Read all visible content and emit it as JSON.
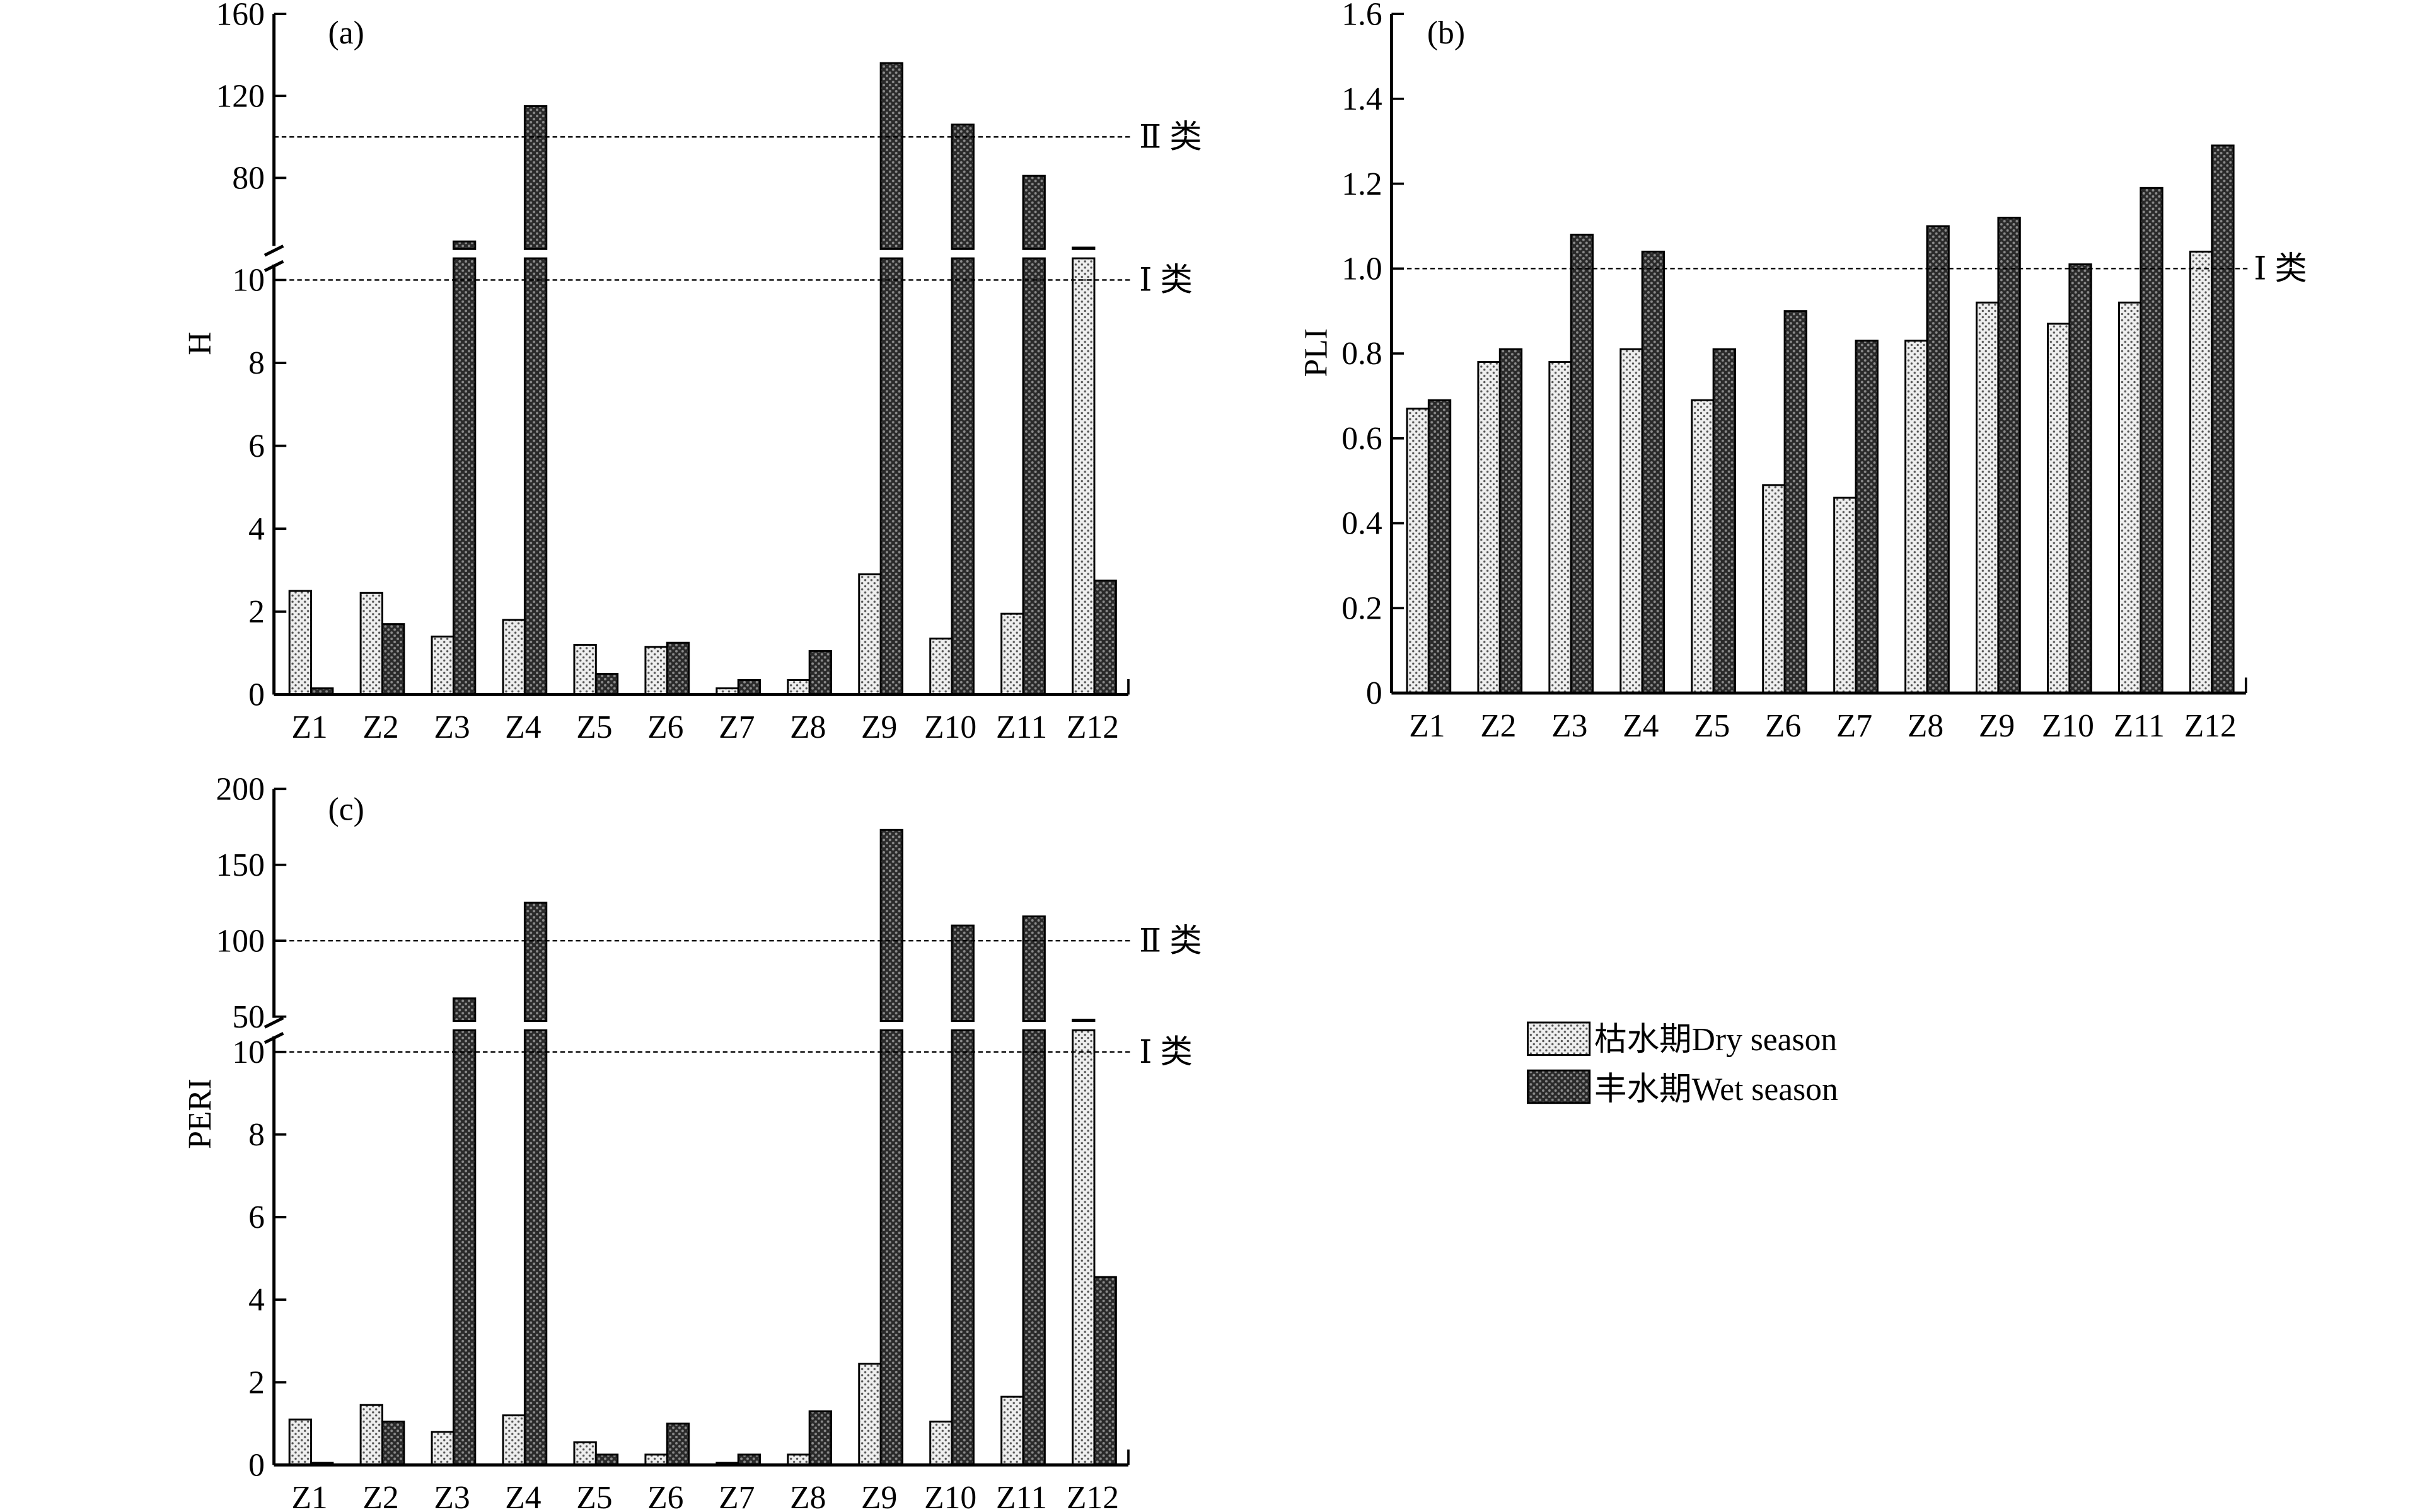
{
  "categories": [
    "Z1",
    "Z2",
    "Z3",
    "Z4",
    "Z5",
    "Z6",
    "Z7",
    "Z8",
    "Z9",
    "Z10",
    "Z11",
    "Z12"
  ],
  "legend": {
    "dry": "枯水期Dry season",
    "wet": "丰水期Wet season"
  },
  "colors": {
    "dry_fill": "#e6e6e6",
    "wet_fill": "#333333",
    "dot": "#555555"
  },
  "chart_data": [
    {
      "id": "a",
      "panel_label": "(a)",
      "type": "bar",
      "ylabel": "H",
      "broken_axis": true,
      "lower_ylim": [
        0,
        10
      ],
      "lower_ticks": [
        "0",
        "2",
        "4",
        "6",
        "8",
        "10"
      ],
      "upper_ylim": [
        40,
        160
      ],
      "upper_ticks": [
        "80",
        "120",
        "160"
      ],
      "reference_lines": [
        {
          "value": 10,
          "label": "Ⅰ 类"
        },
        {
          "value": 100,
          "label": "Ⅱ 类"
        }
      ],
      "categories": [
        "Z1",
        "Z2",
        "Z3",
        "Z4",
        "Z5",
        "Z6",
        "Z7",
        "Z8",
        "Z9",
        "Z10",
        "Z11",
        "Z12"
      ],
      "series": [
        {
          "name": "枯水期Dry season",
          "values": [
            2.5,
            2.45,
            1.4,
            1.8,
            1.2,
            1.15,
            0.15,
            0.35,
            2.9,
            1.35,
            1.95,
            46
          ]
        },
        {
          "name": "丰水期Wet season",
          "values": [
            0.15,
            1.7,
            49,
            115,
            0.5,
            1.25,
            0.35,
            1.05,
            136,
            106,
            81,
            2.75
          ]
        }
      ]
    },
    {
      "id": "b",
      "panel_label": "(b)",
      "type": "bar",
      "ylabel": "PLI",
      "broken_axis": false,
      "ylim": [
        0,
        1.6
      ],
      "ticks": [
        "0",
        "0.2",
        "0.4",
        "0.6",
        "0.8",
        "1.0",
        "1.2",
        "1.4",
        "1.6"
      ],
      "reference_lines": [
        {
          "value": 1.0,
          "label": "Ⅰ 类"
        }
      ],
      "categories": [
        "Z1",
        "Z2",
        "Z3",
        "Z4",
        "Z5",
        "Z6",
        "Z7",
        "Z8",
        "Z9",
        "Z10",
        "Z11",
        "Z12"
      ],
      "series": [
        {
          "name": "枯水期Dry season",
          "values": [
            0.67,
            0.78,
            0.78,
            0.81,
            0.69,
            0.49,
            0.46,
            0.83,
            0.92,
            0.87,
            0.92,
            1.04
          ]
        },
        {
          "name": "丰水期Wet season",
          "values": [
            0.69,
            0.81,
            1.08,
            1.04,
            0.81,
            0.9,
            0.83,
            1.1,
            1.12,
            1.01,
            1.19,
            1.29
          ]
        }
      ]
    },
    {
      "id": "c",
      "panel_label": "(c)",
      "type": "bar",
      "ylabel": "PERI",
      "broken_axis": true,
      "lower_ylim": [
        0,
        10
      ],
      "lower_ticks": [
        "0",
        "2",
        "4",
        "6",
        "8",
        "10"
      ],
      "upper_ylim": [
        40,
        200
      ],
      "upper_ticks": [
        "50",
        "100",
        "150",
        "200"
      ],
      "reference_lines": [
        {
          "value": 10,
          "label": "Ⅰ 类"
        },
        {
          "value": 100,
          "label": "Ⅱ 类"
        }
      ],
      "categories": [
        "Z1",
        "Z2",
        "Z3",
        "Z4",
        "Z5",
        "Z6",
        "Z7",
        "Z8",
        "Z9",
        "Z10",
        "Z11",
        "Z12"
      ],
      "series": [
        {
          "name": "枯水期Dry season",
          "values": [
            1.1,
            1.45,
            0.8,
            1.2,
            0.55,
            0.25,
            0.05,
            0.25,
            2.45,
            1.05,
            1.65,
            48
          ]
        },
        {
          "name": "丰水期Wet season",
          "values": [
            0.05,
            1.05,
            62,
            125,
            0.25,
            1.0,
            0.25,
            1.3,
            173,
            110,
            116,
            4.55
          ]
        }
      ]
    }
  ]
}
